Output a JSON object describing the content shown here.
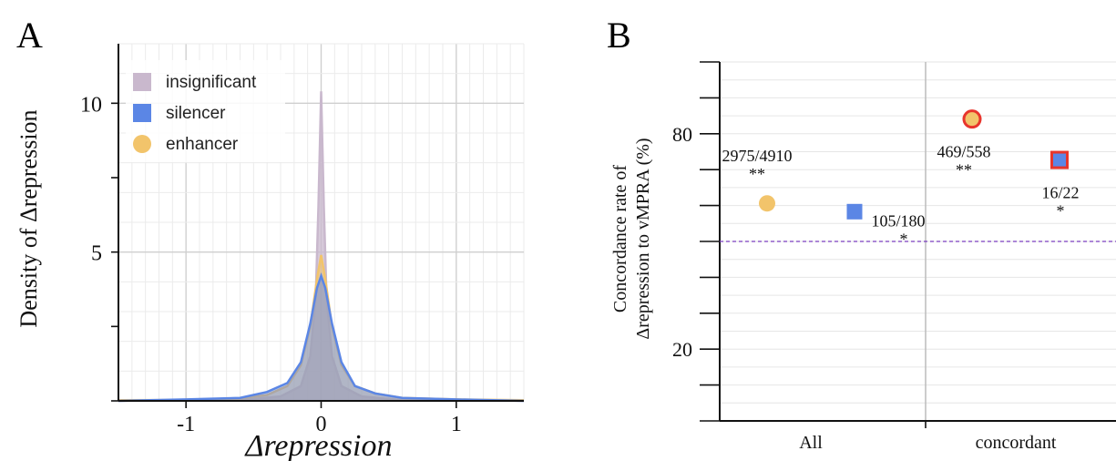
{
  "panels": {
    "a_label": "A",
    "b_label": "B"
  },
  "chart_data": [
    {
      "type": "area",
      "xlabel": "Δrepression",
      "ylabel": "Density of Δrepression",
      "xlim": [
        -1.5,
        1.5
      ],
      "ylim": [
        0,
        12
      ],
      "x_ticks": [
        -1,
        0,
        1
      ],
      "x_tick_labels": [
        "-1",
        "0",
        "1"
      ],
      "y_ticks": [
        5,
        10
      ],
      "y_tick_labels": [
        "5",
        "10"
      ],
      "grid": true,
      "legend_position": "top-left",
      "colors": {
        "insignificant": "#c9b8cd",
        "silencer": "#5b86e5",
        "enhancer": "#f2c46b"
      },
      "series": [
        {
          "name": "insignificant",
          "x": [
            -1.5,
            -0.6,
            -0.3,
            -0.15,
            -0.08,
            -0.04,
            -0.02,
            0,
            0.02,
            0.04,
            0.08,
            0.15,
            0.3,
            0.6,
            1.5
          ],
          "y": [
            0,
            0.02,
            0.15,
            0.5,
            1.5,
            3.5,
            6.5,
            10.4,
            6.5,
            3.5,
            1.5,
            0.5,
            0.15,
            0.02,
            0
          ]
        },
        {
          "name": "silencer",
          "x": [
            -1.5,
            -1.0,
            -0.6,
            -0.4,
            -0.25,
            -0.15,
            -0.08,
            -0.03,
            0,
            0.03,
            0.08,
            0.15,
            0.25,
            0.4,
            0.6,
            1.0,
            1.5
          ],
          "y": [
            0,
            0.05,
            0.1,
            0.3,
            0.6,
            1.3,
            2.6,
            3.8,
            4.2,
            3.8,
            2.6,
            1.3,
            0.5,
            0.25,
            0.1,
            0.05,
            0
          ]
        },
        {
          "name": "enhancer",
          "x": [
            -1.5,
            -1.0,
            -0.6,
            -0.4,
            -0.25,
            -0.15,
            -0.08,
            -0.03,
            0,
            0.03,
            0.08,
            0.15,
            0.25,
            0.4,
            0.6,
            1.0,
            1.5
          ],
          "y": [
            0.02,
            0.03,
            0.08,
            0.2,
            0.5,
            1.2,
            2.5,
            4.1,
            4.9,
            4.1,
            2.5,
            1.2,
            0.5,
            0.25,
            0.1,
            0.05,
            0.02
          ]
        }
      ]
    },
    {
      "type": "scatter",
      "ylabel_line1": "Concordance rate of",
      "ylabel_line2": "Δrepression to vMPRA (%)",
      "ylim": [
        0,
        100
      ],
      "y_ticks": [
        20,
        80
      ],
      "y_tick_labels": [
        "20",
        "80"
      ],
      "categories": [
        "All",
        "concordant"
      ],
      "reference_line": 50,
      "reference_color": "#7b3fbf",
      "grid": true,
      "points": [
        {
          "category": "All",
          "offset": -1,
          "value": 60.6,
          "marker": "circle",
          "fill": "#f2c46b",
          "edge": "#f2c46b",
          "fraction_label": "2975/4910",
          "sig": "**"
        },
        {
          "category": "All",
          "offset": 1,
          "value": 58.3,
          "marker": "square",
          "fill": "#5b86e5",
          "edge": "#5b86e5",
          "fraction_label": "105/180",
          "sig": "*"
        },
        {
          "category": "concordant",
          "offset": -1,
          "value": 84.1,
          "marker": "circle",
          "fill": "#f2c46b",
          "edge": "#e8352c",
          "fraction_label": "469/558",
          "sig": "**"
        },
        {
          "category": "concordant",
          "offset": 1,
          "value": 72.7,
          "marker": "square",
          "fill": "#5b86e5",
          "edge": "#e8352c",
          "fraction_label": "16/22",
          "sig": "*"
        }
      ]
    }
  ]
}
